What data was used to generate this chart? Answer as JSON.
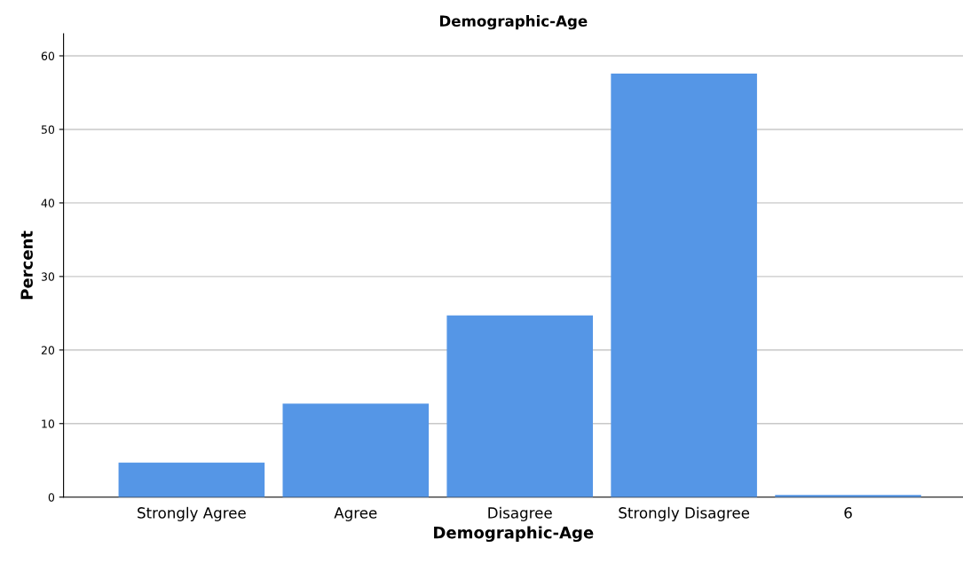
{
  "chart_data": {
    "type": "bar",
    "title": "Demographic-Age",
    "xlabel": "Demographic-Age",
    "ylabel": "Percent",
    "categories": [
      "Strongly Agree",
      "Agree",
      "Disagree",
      "Strongly Disagree",
      "6"
    ],
    "values": [
      4.7,
      12.7,
      24.7,
      57.6,
      0.3
    ],
    "color": "#5596e6",
    "ylim": [
      0,
      63
    ],
    "yticks": [
      0,
      10,
      20,
      30,
      40,
      50,
      60
    ],
    "grid": "y",
    "legend": false
  }
}
